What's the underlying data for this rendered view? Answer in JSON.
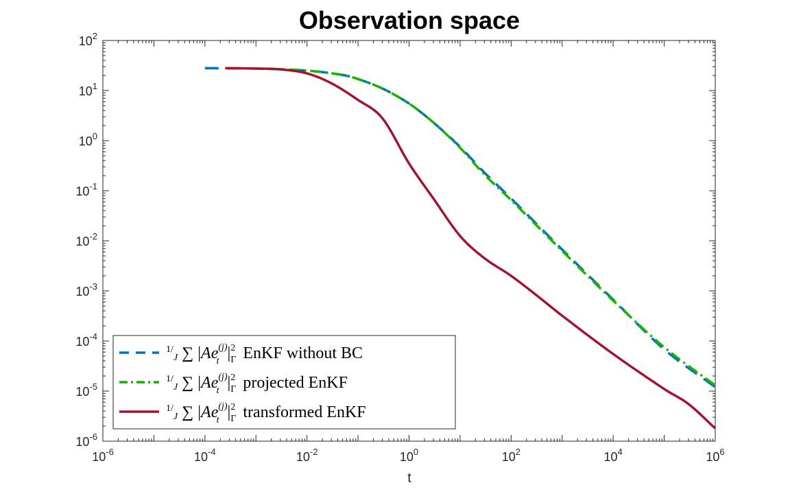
{
  "chart_data": {
    "type": "line",
    "title": "Observation space",
    "xlabel": "t",
    "ylabel": "",
    "xscale": "log",
    "yscale": "log",
    "xlim": [
      1e-06,
      1000000.0
    ],
    "ylim": [
      1e-06,
      100
    ],
    "grid": false,
    "legend_position": "bottom-left",
    "x_ticks": [
      {
        "base": "10",
        "exp": "-6"
      },
      {
        "base": "10",
        "exp": "-4"
      },
      {
        "base": "10",
        "exp": "-2"
      },
      {
        "base": "10",
        "exp": "0"
      },
      {
        "base": "10",
        "exp": "2"
      },
      {
        "base": "10",
        "exp": "4"
      },
      {
        "base": "10",
        "exp": "6"
      }
    ],
    "y_ticks": [
      {
        "base": "10",
        "exp": "-6"
      },
      {
        "base": "10",
        "exp": "-5"
      },
      {
        "base": "10",
        "exp": "-4"
      },
      {
        "base": "10",
        "exp": "-3"
      },
      {
        "base": "10",
        "exp": "-2"
      },
      {
        "base": "10",
        "exp": "-1"
      },
      {
        "base": "10",
        "exp": "0"
      },
      {
        "base": "10",
        "exp": "1"
      },
      {
        "base": "10",
        "exp": "2"
      }
    ],
    "series": [
      {
        "name": "1/J ∑ |Ae_t^(j)|_Γ^2 EnKF without BC",
        "legend_label": "EnKF without BC",
        "color": "#0072BD",
        "style": "dashed",
        "x": [
          0.0001,
          0.001,
          0.01,
          0.05,
          0.1,
          0.3,
          1,
          3,
          10,
          30,
          100,
          1000,
          10000,
          100000,
          1000000
        ],
        "y": [
          28,
          27.5,
          25,
          20.5,
          17,
          11,
          5.5,
          2.3,
          0.75,
          0.23,
          0.07,
          0.0067,
          0.00067,
          6.8e-05,
          1.2e-05
        ]
      },
      {
        "name": "1/J ∑ |Ae_t^(j)|_Γ^2 projected EnKF",
        "legend_label": "projected EnKF",
        "color": "#17B300",
        "style": "dashdot",
        "x": [
          0.00025,
          0.001,
          0.01,
          0.05,
          0.1,
          0.3,
          1,
          3,
          10,
          30,
          100,
          1000,
          10000,
          100000,
          1000000
        ],
        "y": [
          28,
          27.5,
          25,
          20.5,
          17,
          11,
          5.5,
          2.3,
          0.72,
          0.21,
          0.065,
          0.0063,
          0.00064,
          7.5e-05,
          1.3e-05
        ]
      },
      {
        "name": "1/J ∑ |Ae_t^(j)|_Γ^2 transformed EnKF",
        "legend_label": "transformed EnKF",
        "color": "#A2142F",
        "style": "solid",
        "x": [
          0.00025,
          0.001,
          0.003,
          0.01,
          0.03,
          0.1,
          0.3,
          1,
          3,
          10,
          30,
          100,
          300,
          1000,
          10000,
          100000,
          300000,
          1000000
        ],
        "y": [
          28,
          27.5,
          26.5,
          22,
          14,
          6.5,
          2.8,
          0.35,
          0.07,
          0.0125,
          0.0045,
          0.002,
          0.00085,
          0.00032,
          5.5e-05,
          1.1e-05,
          5.5e-06,
          1.8e-06
        ]
      }
    ]
  }
}
